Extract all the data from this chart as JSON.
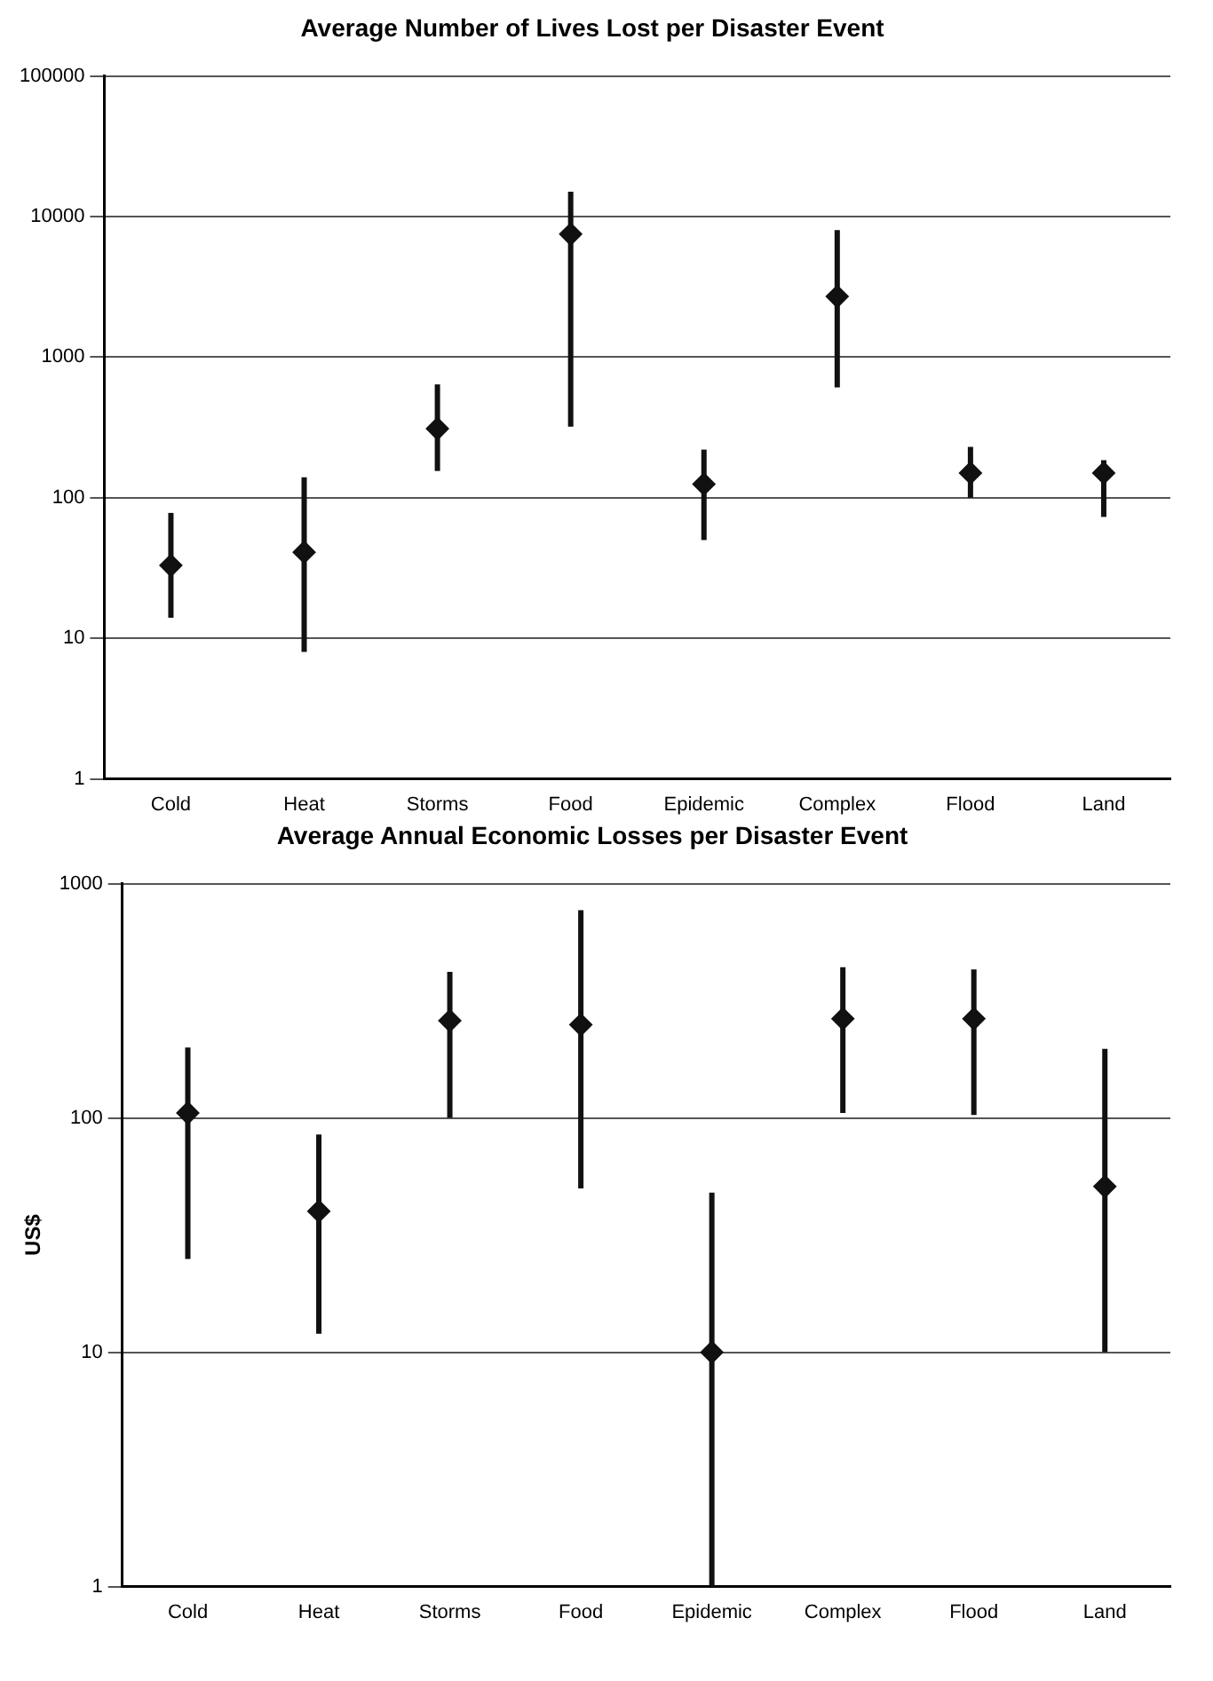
{
  "chart_data": [
    {
      "type": "scatter",
      "title": "Average Number of Lives Lost per Disaster Event",
      "categories": [
        "Cold",
        "Heat",
        "Storms",
        "Food",
        "Epidemic",
        "Complex",
        "Flood",
        "Land"
      ],
      "values": [
        33,
        41,
        310,
        7500,
        125,
        2700,
        150,
        150
      ],
      "errors": [
        [
          14,
          78
        ],
        [
          8,
          140
        ],
        [
          155,
          640
        ],
        [
          320,
          15000
        ],
        [
          50,
          220
        ],
        [
          610,
          8000
        ],
        [
          100,
          230
        ],
        [
          73,
          185
        ]
      ],
      "color": "#111111",
      "marker": "diamond",
      "log": "y",
      "ylim": [
        1,
        100000
      ],
      "yticks": [
        1,
        10,
        100,
        1000,
        10000,
        100000
      ],
      "grid": "y",
      "legend": false
    },
    {
      "type": "scatter",
      "title": "Average Annual Economic Losses per Disaster Event",
      "ylabel": "US$",
      "categories": [
        "Cold",
        "Heat",
        "Storms",
        "Food",
        "Epidemic",
        "Complex",
        "Flood",
        "Land"
      ],
      "values": [
        105,
        40,
        260,
        250,
        10,
        265,
        265,
        51
      ],
      "errors": [
        [
          25,
          200
        ],
        [
          12,
          85
        ],
        [
          100,
          420
        ],
        [
          50,
          770
        ],
        [
          1,
          48
        ],
        [
          105,
          440
        ],
        [
          103,
          430
        ],
        [
          10,
          197
        ]
      ],
      "color": "#111111",
      "marker": "diamond",
      "log": "y",
      "ylim": [
        1,
        1000
      ],
      "yticks": [
        1,
        10,
        100,
        1000
      ],
      "grid": "y",
      "legend": false
    }
  ]
}
